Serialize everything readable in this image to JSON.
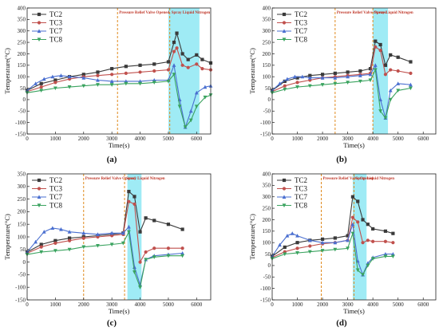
{
  "chart_data": [
    {
      "type": "line",
      "panel_label": "(a)",
      "xlabel": "Time(s)",
      "ylabel": "Temperature(°C)",
      "xlim": [
        0,
        6500
      ],
      "ylim": [
        -150,
        400
      ],
      "x_ticks": [
        "0",
        "1000",
        "2000",
        "3000",
        "4000",
        "5000",
        "6000"
      ],
      "y_ticks": [
        "-150",
        "-100",
        "-50",
        "0",
        "50",
        "100",
        "150",
        "200",
        "250",
        "300",
        "350",
        "400"
      ],
      "grid": false,
      "legend": "top-left",
      "annotations": [
        {
          "text": "Pressure Relief Valve Opened",
          "x": 3200
        },
        {
          "text": "Spray Liquid Nitrogen",
          "x": 5050
        }
      ],
      "shaded_x_range": [
        5000,
        6100
      ],
      "series": [
        {
          "name": "TC2",
          "color": "#3a3a3a",
          "marker": "square",
          "x": [
            0,
            500,
            1000,
            1500,
            2000,
            2500,
            3000,
            3500,
            4000,
            4500,
            5000,
            5200,
            5300,
            5500,
            5700,
            6000,
            6200,
            6500
          ],
          "y": [
            40,
            70,
            85,
            100,
            110,
            120,
            135,
            145,
            150,
            155,
            165,
            250,
            290,
            200,
            175,
            195,
            175,
            160
          ]
        },
        {
          "name": "TC3",
          "color": "#c0504d",
          "marker": "circle",
          "x": [
            0,
            500,
            1000,
            1500,
            2000,
            2500,
            3000,
            3500,
            4000,
            4500,
            5000,
            5200,
            5300,
            5500,
            5700,
            6000,
            6200,
            6500
          ],
          "y": [
            35,
            55,
            75,
            90,
            100,
            105,
            110,
            115,
            120,
            125,
            130,
            210,
            225,
            150,
            140,
            155,
            135,
            130
          ]
        },
        {
          "name": "TC7",
          "color": "#4a6fd0",
          "marker": "triangle",
          "x": [
            0,
            300,
            600,
            900,
            1200,
            1500,
            2000,
            2500,
            3000,
            3500,
            4000,
            4500,
            5000,
            5200,
            5400,
            5600,
            5800,
            6000,
            6300,
            6500
          ],
          "y": [
            40,
            70,
            90,
            100,
            105,
            100,
            95,
            85,
            80,
            80,
            80,
            85,
            85,
            150,
            0,
            -120,
            -50,
            30,
            55,
            60
          ]
        },
        {
          "name": "TC8",
          "color": "#3aa35f",
          "marker": "down-triangle",
          "x": [
            0,
            500,
            1000,
            1500,
            2000,
            2500,
            3000,
            3500,
            4000,
            4500,
            5000,
            5200,
            5400,
            5600,
            5800,
            6000,
            6300,
            6500
          ],
          "y": [
            30,
            40,
            50,
            55,
            60,
            65,
            65,
            70,
            70,
            75,
            80,
            110,
            -30,
            -120,
            -90,
            -30,
            10,
            20
          ]
        }
      ]
    },
    {
      "type": "line",
      "panel_label": "(b)",
      "xlabel": "Time(s)",
      "ylabel": "Temperature(°C)",
      "xlim": [
        0,
        6500
      ],
      "ylim": [
        -150,
        400
      ],
      "x_ticks": [
        "0",
        "1000",
        "2000",
        "3000",
        "4000",
        "5000",
        "6000"
      ],
      "y_ticks": [
        "-150",
        "-100",
        "-50",
        "0",
        "50",
        "100",
        "150",
        "200",
        "250",
        "300",
        "350",
        "400"
      ],
      "grid": false,
      "legend": "top-left",
      "annotations": [
        {
          "text": "Pressure Relief Valve Opened",
          "x": 2500
        },
        {
          "text": "Spray Liquid Nitrogen",
          "x": 4000
        }
      ],
      "shaded_x_range": [
        4000,
        4600
      ],
      "series": [
        {
          "name": "TC2",
          "color": "#3a3a3a",
          "marker": "square",
          "x": [
            0,
            500,
            1000,
            1500,
            2000,
            2500,
            3000,
            3500,
            3900,
            4100,
            4300,
            4500,
            4700,
            5000,
            5500
          ],
          "y": [
            40,
            80,
            95,
            105,
            110,
            115,
            120,
            125,
            135,
            255,
            240,
            150,
            195,
            185,
            165
          ]
        },
        {
          "name": "TC3",
          "color": "#c0504d",
          "marker": "circle",
          "x": [
            0,
            500,
            1000,
            1500,
            2000,
            2500,
            3000,
            3500,
            3900,
            4100,
            4300,
            4500,
            4700,
            5000,
            5500
          ],
          "y": [
            35,
            60,
            75,
            85,
            95,
            100,
            105,
            110,
            115,
            230,
            215,
            110,
            130,
            125,
            115
          ]
        },
        {
          "name": "TC7",
          "color": "#4a6fd0",
          "marker": "triangle",
          "x": [
            0,
            300,
            600,
            900,
            1200,
            1500,
            2000,
            2500,
            3000,
            3500,
            3900,
            4100,
            4300,
            4500,
            4700,
            5000,
            5500
          ],
          "y": [
            40,
            70,
            90,
            100,
            100,
            95,
            95,
            95,
            100,
            105,
            110,
            150,
            0,
            -80,
            40,
            70,
            65
          ]
        },
        {
          "name": "TC8",
          "color": "#3aa35f",
          "marker": "down-triangle",
          "x": [
            0,
            500,
            1000,
            1500,
            2000,
            2500,
            3000,
            3500,
            3900,
            4100,
            4300,
            4500,
            4700,
            5000,
            5500
          ],
          "y": [
            30,
            45,
            55,
            60,
            65,
            70,
            75,
            80,
            85,
            130,
            -50,
            -80,
            0,
            40,
            50
          ]
        }
      ]
    },
    {
      "type": "line",
      "panel_label": "(c)",
      "xlabel": "Time(s)",
      "ylabel": "Temperature(°C)",
      "xlim": [
        0,
        6500
      ],
      "ylim": [
        -150,
        350
      ],
      "x_ticks": [
        "0",
        "1000",
        "2000",
        "3000",
        "4000",
        "5000",
        "6000"
      ],
      "y_ticks": [
        "-150",
        "-100",
        "-50",
        "0",
        "50",
        "100",
        "150",
        "200",
        "250",
        "300",
        "350"
      ],
      "grid": false,
      "legend": "top-left",
      "annotations": [
        {
          "text": "Pressure Relief Valve Opened",
          "x": 2000
        },
        {
          "text": "Spray Liquid Nitrogen",
          "x": 3450
        }
      ],
      "shaded_x_range": [
        3550,
        4050
      ],
      "series": [
        {
          "name": "TC2",
          "color": "#3a3a3a",
          "marker": "square",
          "x": [
            0,
            500,
            1000,
            1500,
            2000,
            2500,
            3000,
            3400,
            3600,
            3800,
            4000,
            4200,
            4500,
            5000,
            5500
          ],
          "y": [
            40,
            70,
            85,
            95,
            100,
            105,
            110,
            115,
            280,
            260,
            120,
            175,
            165,
            150,
            130
          ]
        },
        {
          "name": "TC3",
          "color": "#c0504d",
          "marker": "circle",
          "x": [
            0,
            500,
            1000,
            1500,
            2000,
            2500,
            3000,
            3400,
            3600,
            3800,
            4000,
            4200,
            4500,
            5000,
            5500
          ],
          "y": [
            35,
            60,
            75,
            85,
            95,
            100,
            105,
            110,
            240,
            230,
            0,
            40,
            55,
            55,
            55
          ]
        },
        {
          "name": "TC7",
          "color": "#4a6fd0",
          "marker": "triangle",
          "x": [
            0,
            300,
            600,
            900,
            1200,
            1500,
            2000,
            2500,
            3000,
            3400,
            3600,
            3800,
            4000,
            4200,
            4500,
            5000,
            5500
          ],
          "y": [
            40,
            80,
            120,
            135,
            130,
            120,
            115,
            110,
            115,
            115,
            140,
            -20,
            -90,
            10,
            25,
            30,
            35
          ]
        },
        {
          "name": "TC8",
          "color": "#3aa35f",
          "marker": "down-triangle",
          "x": [
            0,
            500,
            1000,
            1500,
            2000,
            2500,
            3000,
            3400,
            3600,
            3800,
            4000,
            4200,
            4500,
            5000,
            5500
          ],
          "y": [
            30,
            40,
            45,
            50,
            60,
            65,
            70,
            75,
            120,
            -40,
            -100,
            10,
            20,
            25,
            25
          ]
        }
      ]
    },
    {
      "type": "line",
      "panel_label": "(d)",
      "xlabel": "Time(s)",
      "ylabel": "Temperature(°C)",
      "xlim": [
        0,
        6500
      ],
      "ylim": [
        -150,
        400
      ],
      "x_ticks": [
        "0",
        "1000",
        "2000",
        "3000",
        "4000",
        "5000",
        "6000"
      ],
      "y_ticks": [
        "-150",
        "-100",
        "-50",
        "0",
        "50",
        "100",
        "150",
        "200",
        "250",
        "300",
        "350",
        "400"
      ],
      "grid": false,
      "legend": "top-left",
      "annotations": [
        {
          "text": "Pressure Relief Valve Opened",
          "x": 1950
        },
        {
          "text": "Spray Liquid Nitrogen",
          "x": 3250
        }
      ],
      "shaded_x_range": [
        3200,
        3750
      ],
      "series": [
        {
          "name": "TC2",
          "color": "#3a3a3a",
          "marker": "square",
          "x": [
            0,
            500,
            1000,
            1500,
            2000,
            2500,
            3000,
            3200,
            3400,
            3600,
            3800,
            4000,
            4500,
            4800
          ],
          "y": [
            40,
            80,
            100,
            110,
            115,
            120,
            130,
            300,
            280,
            200,
            180,
            160,
            150,
            140
          ]
        },
        {
          "name": "TC3",
          "color": "#c0504d",
          "marker": "circle",
          "x": [
            0,
            500,
            1000,
            1500,
            2000,
            2500,
            3000,
            3200,
            3400,
            3600,
            3800,
            4000,
            4500,
            4800
          ],
          "y": [
            35,
            60,
            75,
            85,
            95,
            100,
            110,
            210,
            190,
            100,
            110,
            105,
            105,
            100
          ]
        },
        {
          "name": "TC7",
          "color": "#4a6fd0",
          "marker": "triangle",
          "x": [
            0,
            300,
            600,
            800,
            1000,
            1500,
            2000,
            2500,
            3000,
            3200,
            3400,
            3600,
            3800,
            4000,
            4500,
            4800
          ],
          "y": [
            40,
            90,
            130,
            140,
            130,
            110,
            100,
            100,
            110,
            180,
            20,
            -40,
            10,
            35,
            50,
            50
          ]
        },
        {
          "name": "TC8",
          "color": "#3aa35f",
          "marker": "down-triangle",
          "x": [
            0,
            500,
            1000,
            1500,
            2000,
            2500,
            3000,
            3200,
            3400,
            3600,
            3800,
            4000,
            4500,
            4800
          ],
          "y": [
            30,
            50,
            55,
            60,
            65,
            70,
            75,
            140,
            -20,
            -40,
            0,
            30,
            40,
            40
          ]
        }
      ]
    }
  ]
}
